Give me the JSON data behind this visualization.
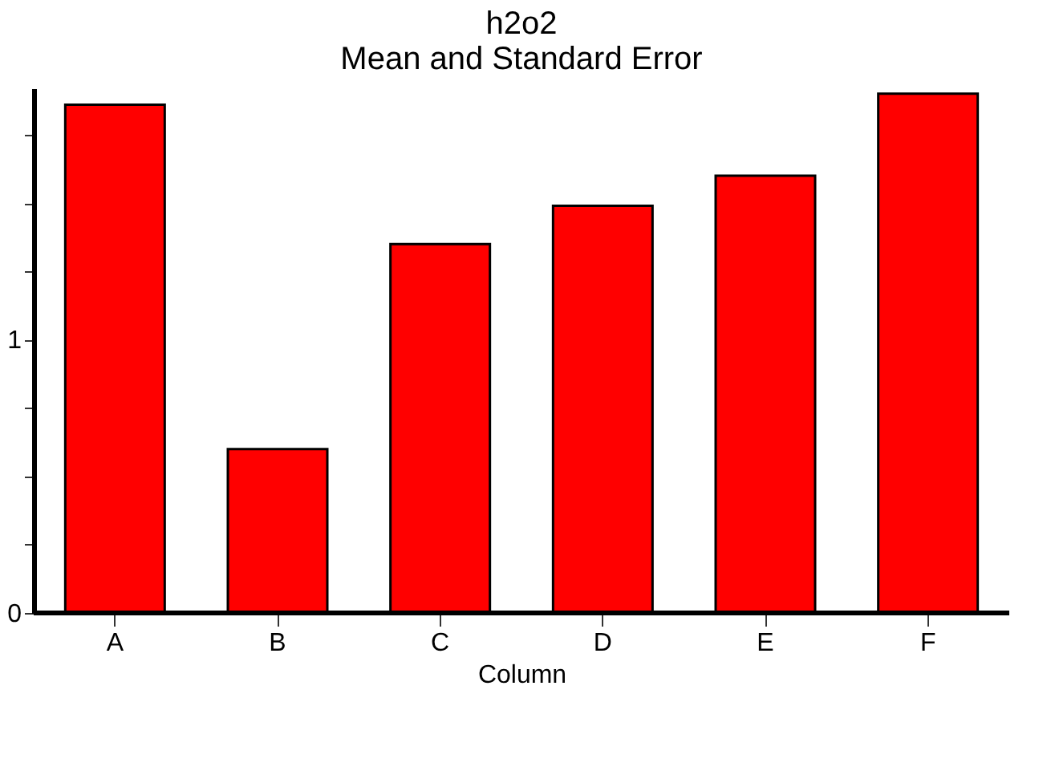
{
  "chart_data": {
    "type": "bar",
    "title": "h2o2",
    "subtitle": "Mean and Standard Error",
    "xlabel": "Column",
    "categories": [
      "A",
      "B",
      "C",
      "D",
      "E",
      "F"
    ],
    "values": [
      1.86,
      0.6,
      1.35,
      1.49,
      1.6,
      1.9
    ],
    "color": "#ff0000",
    "ylim": [
      0,
      1.92
    ],
    "yticks": [
      0,
      {
        "value": 0.25,
        "label": null
      },
      {
        "value": 0.5,
        "label": null
      },
      {
        "value": 0.75,
        "label": null
      },
      1,
      {
        "value": 1.25,
        "label": null
      },
      {
        "value": 1.5,
        "label": null
      },
      {
        "value": 1.75,
        "label": null
      }
    ],
    "grid": false
  }
}
